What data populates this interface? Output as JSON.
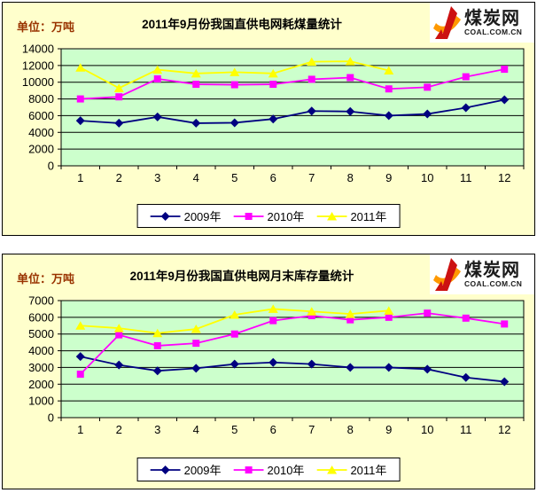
{
  "logo": {
    "name": "煤炭网",
    "url": "COAL.COM.CN",
    "flame_red": "#CC1111",
    "flame_orange": "#FF9900"
  },
  "colors": {
    "panel_background": "#FFFFCC",
    "plot_background": "#CCFFCC",
    "unit_label_text": "#993300",
    "gridline": "#000000",
    "series_2009": "#000080",
    "series_2010": "#FF00FF",
    "series_2011": "#FFFF00"
  },
  "chart_data": [
    {
      "type": "line",
      "title": "2011年9月份我国直供电网耗煤量统计",
      "unit_label": "单位：万吨",
      "x_categories": [
        1,
        2,
        3,
        4,
        5,
        6,
        7,
        8,
        9,
        10,
        11,
        12
      ],
      "ylim": [
        0,
        14000
      ],
      "ytick_step": 2000,
      "grid": true,
      "legend_position": "bottom",
      "series": [
        {
          "name": "2009年",
          "color": "#000080",
          "marker": "diamond",
          "values": [
            5400,
            5100,
            5850,
            5100,
            5150,
            5600,
            6550,
            6500,
            6000,
            6200,
            6950,
            7900
          ]
        },
        {
          "name": "2010年",
          "color": "#FF00FF",
          "marker": "square",
          "values": [
            8000,
            8250,
            10400,
            9750,
            9700,
            9750,
            10350,
            10550,
            9200,
            9400,
            10650,
            11550
          ]
        },
        {
          "name": "2011年",
          "color": "#FFFF00",
          "marker": "triangle",
          "values": [
            11750,
            9300,
            11500,
            11050,
            11200,
            11050,
            12450,
            12500,
            11400
          ]
        }
      ]
    },
    {
      "type": "line",
      "title": "2011年9月份我国直供电网月末库存量统计",
      "unit_label": "单位：万吨",
      "x_categories": [
        1,
        2,
        3,
        4,
        5,
        6,
        7,
        8,
        9,
        10,
        11,
        12
      ],
      "ylim": [
        0,
        7000
      ],
      "ytick_step": 1000,
      "grid": true,
      "legend_position": "bottom",
      "series": [
        {
          "name": "2009年",
          "color": "#000080",
          "marker": "diamond",
          "values": [
            3650,
            3150,
            2800,
            2950,
            3200,
            3300,
            3200,
            3000,
            3000,
            2900,
            2400,
            2150
          ]
        },
        {
          "name": "2010年",
          "color": "#FF00FF",
          "marker": "square",
          "values": [
            2600,
            4950,
            4300,
            4450,
            5000,
            5800,
            6100,
            5850,
            6000,
            6250,
            5950,
            5600
          ]
        },
        {
          "name": "2011年",
          "color": "#FFFF00",
          "marker": "triangle",
          "values": [
            5500,
            5350,
            5050,
            5300,
            6150,
            6500,
            6350,
            6200,
            6400
          ]
        }
      ]
    }
  ]
}
